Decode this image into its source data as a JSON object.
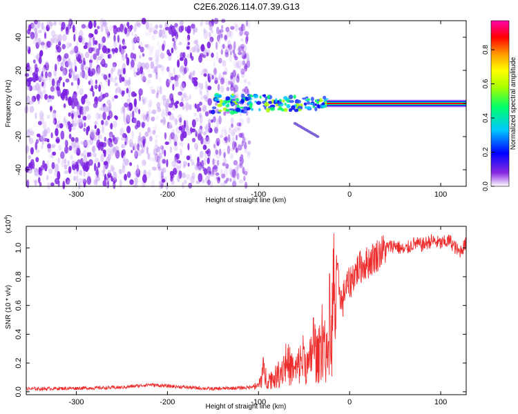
{
  "title": "C2E6.2026.114.07.39.G13",
  "colors": {
    "trace": "#ee2b2b",
    "noise": "#8a2be2",
    "axis": "#000000",
    "colormap": [
      "#ffffff",
      "#8a2be2",
      "#0000ff",
      "#00c8ff",
      "#00ff66",
      "#aaff00",
      "#ffff00",
      "#ff9900",
      "#ff0000",
      "#ff00aa"
    ]
  },
  "chart_data": [
    {
      "type": "heatmap",
      "name": "spectrogram",
      "title": "C2E6.2026.114.07.39.G13",
      "xlabel": "Height of straight line (km)",
      "ylabel": "Frequency (Hz)",
      "xlim": [
        -355,
        128
      ],
      "ylim": [
        -50,
        50
      ],
      "xticks": [
        -300,
        -200,
        -100,
        0,
        100
      ],
      "yticks": [
        -40,
        -20,
        0,
        20,
        40
      ],
      "colorbar": {
        "label": "Normalized spectral amplitude",
        "range": [
          0,
          0.97
        ],
        "ticks": [
          0.0,
          0.2,
          0.4,
          0.6,
          0.8
        ]
      },
      "features": {
        "noise_region_x": [
          -355,
          -110
        ],
        "carrier_frequency_hz": 0,
        "carrier_start_x": -25,
        "scatter_region_x": [
          -150,
          -25
        ],
        "side_trace_x": [
          -60,
          -35
        ],
        "side_trace_y": [
          -12,
          -20
        ]
      }
    },
    {
      "type": "line",
      "name": "snr",
      "xlabel": "Height of straight line (km)",
      "ylabel": "SNR (10 * v/v)",
      "y_multiplier_label": "(x10",
      "y_multiplier_exp": "4",
      "xlim": [
        -355,
        128
      ],
      "ylim": [
        -0.02,
        1.15
      ],
      "xticks": [
        -300,
        -200,
        -100,
        0,
        100
      ],
      "yticks": [
        0.0,
        0.2,
        0.4,
        0.6,
        0.8,
        1.0
      ],
      "series": [
        {
          "name": "SNR",
          "x": [
            -355,
            -300,
            -250,
            -220,
            -200,
            -150,
            -110,
            -100,
            -95,
            -90,
            -80,
            -70,
            -60,
            -50,
            -45,
            -40,
            -35,
            -30,
            -25,
            -22,
            -20,
            -18,
            -16,
            -12,
            -8,
            -5,
            0,
            5,
            10,
            20,
            30,
            40,
            50,
            60,
            70,
            80,
            90,
            100,
            110,
            120,
            128
          ],
          "y": [
            0.02,
            0.025,
            0.03,
            0.05,
            0.04,
            0.02,
            0.03,
            0.06,
            0.2,
            0.12,
            0.15,
            0.3,
            0.2,
            0.35,
            0.22,
            0.5,
            0.3,
            0.6,
            0.3,
            0.7,
            0.45,
            0.95,
            0.9,
            0.75,
            0.6,
            0.72,
            0.75,
            0.82,
            0.86,
            0.9,
            0.95,
            1.0,
            1.02,
            0.98,
            1.03,
            1.02,
            1.05,
            1.03,
            1.05,
            0.97,
            1.03
          ]
        }
      ]
    }
  ]
}
